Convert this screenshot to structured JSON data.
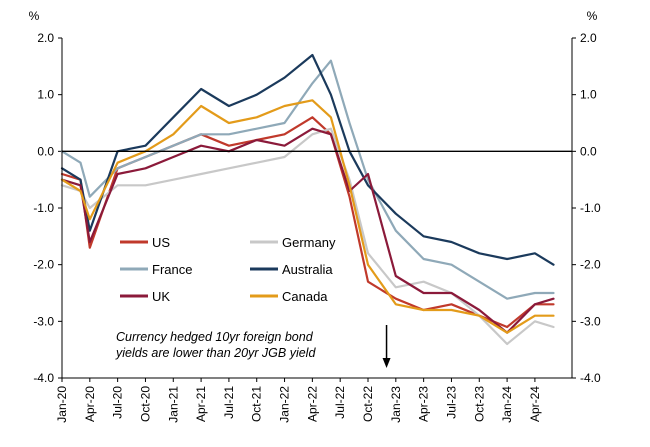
{
  "chart_data": {
    "type": "line",
    "title": "",
    "xlabel": "",
    "ylabel": "%",
    "y_unit_left": "%",
    "y_unit_right": "%",
    "ylim": [
      -4.0,
      2.0
    ],
    "yticks": [
      "2.0",
      "1.0",
      "0.0",
      "-1.0",
      "-2.0",
      "-3.0",
      "-4.0"
    ],
    "xticks": [
      "Jan-20",
      "Apr-20",
      "Jul-20",
      "Oct-20",
      "Jan-21",
      "Apr-21",
      "Jul-21",
      "Oct-21",
      "Jan-22",
      "Apr-22",
      "Jul-22",
      "Oct-22",
      "Jan-23",
      "Apr-23",
      "Jul-23",
      "Oct-23",
      "Jan-24",
      "Apr-24"
    ],
    "grid": false,
    "legend_position": "lower-left",
    "annotation": [
      "Currency hedged 10yr foreign bond",
      "yields are lower than 20yr JGB yield"
    ],
    "annotation_arrow_at": "Dec-22",
    "colors": {
      "US": "#c0392b",
      "Germany": "#c8c8c8",
      "France": "#8fa9b8",
      "Australia": "#1b3a5c",
      "UK": "#8b1a3a",
      "Canada": "#e39b1a"
    },
    "series": [
      {
        "name": "US",
        "color": "#c0392b",
        "x": [
          "Jan-20",
          "Mar-20",
          "Apr-20",
          "Jul-20",
          "Oct-20",
          "Jan-21",
          "Apr-21",
          "Jul-21",
          "Oct-21",
          "Jan-22",
          "Apr-22",
          "Jun-22",
          "Aug-22",
          "Oct-22",
          "Jan-23",
          "Apr-23",
          "Jul-23",
          "Oct-23",
          "Jan-24",
          "Apr-24",
          "Jun-24"
        ],
        "y": [
          -0.4,
          -0.5,
          -1.7,
          -0.3,
          -0.1,
          0.1,
          0.3,
          0.1,
          0.2,
          0.3,
          0.6,
          0.3,
          -0.8,
          -2.3,
          -2.6,
          -2.8,
          -2.7,
          -2.9,
          -3.1,
          -2.7,
          -2.7
        ]
      },
      {
        "name": "Germany",
        "color": "#c8c8c8",
        "x": [
          "Jan-20",
          "Mar-20",
          "Apr-20",
          "Jul-20",
          "Oct-20",
          "Jan-21",
          "Apr-21",
          "Jul-21",
          "Oct-21",
          "Jan-22",
          "Apr-22",
          "Jun-22",
          "Aug-22",
          "Oct-22",
          "Jan-23",
          "Apr-23",
          "Jul-23",
          "Oct-23",
          "Jan-24",
          "Apr-24",
          "Jun-24"
        ],
        "y": [
          -0.6,
          -0.7,
          -1.0,
          -0.6,
          -0.6,
          -0.5,
          -0.4,
          -0.3,
          -0.2,
          -0.1,
          0.3,
          0.4,
          -0.5,
          -1.8,
          -2.4,
          -2.3,
          -2.5,
          -2.9,
          -3.4,
          -3.0,
          -3.1
        ]
      },
      {
        "name": "France",
        "color": "#8fa9b8",
        "x": [
          "Jan-20",
          "Mar-20",
          "Apr-20",
          "Jul-20",
          "Oct-20",
          "Jan-21",
          "Apr-21",
          "Jul-21",
          "Oct-21",
          "Jan-22",
          "Apr-22",
          "Jun-22",
          "Aug-22",
          "Oct-22",
          "Jan-23",
          "Apr-23",
          "Jul-23",
          "Oct-23",
          "Jan-24",
          "Apr-24",
          "Jun-24"
        ],
        "y": [
          0.0,
          -0.2,
          -0.8,
          -0.3,
          -0.1,
          0.1,
          0.3,
          0.3,
          0.4,
          0.5,
          1.2,
          1.6,
          0.5,
          -0.5,
          -1.4,
          -1.9,
          -2.0,
          -2.3,
          -2.6,
          -2.5,
          -2.5
        ]
      },
      {
        "name": "Australia",
        "color": "#1b3a5c",
        "x": [
          "Jan-20",
          "Mar-20",
          "Apr-20",
          "Jul-20",
          "Oct-20",
          "Jan-21",
          "Apr-21",
          "Jul-21",
          "Oct-21",
          "Jan-22",
          "Apr-22",
          "Jun-22",
          "Aug-22",
          "Oct-22",
          "Jan-23",
          "Apr-23",
          "Jul-23",
          "Oct-23",
          "Jan-24",
          "Apr-24",
          "Jun-24"
        ],
        "y": [
          -0.3,
          -0.5,
          -1.4,
          0.0,
          0.1,
          0.6,
          1.1,
          0.8,
          1.0,
          1.3,
          1.7,
          1.0,
          0.0,
          -0.6,
          -1.1,
          -1.5,
          -1.6,
          -1.8,
          -1.9,
          -1.8,
          -2.0
        ]
      },
      {
        "name": "UK",
        "color": "#8b1a3a",
        "x": [
          "Jan-20",
          "Mar-20",
          "Apr-20",
          "Jul-20",
          "Oct-20",
          "Jan-21",
          "Apr-21",
          "Jul-21",
          "Oct-21",
          "Jan-22",
          "Apr-22",
          "Jun-22",
          "Aug-22",
          "Oct-22",
          "Jan-23",
          "Apr-23",
          "Jul-23",
          "Oct-23",
          "Jan-24",
          "Apr-24",
          "Jun-24"
        ],
        "y": [
          -0.5,
          -0.6,
          -1.6,
          -0.4,
          -0.3,
          -0.1,
          0.1,
          0.0,
          0.2,
          0.1,
          0.4,
          0.3,
          -0.7,
          -0.4,
          -2.2,
          -2.5,
          -2.5,
          -2.8,
          -3.2,
          -2.7,
          -2.6
        ]
      },
      {
        "name": "Canada",
        "color": "#e39b1a",
        "x": [
          "Jan-20",
          "Mar-20",
          "Apr-20",
          "Jul-20",
          "Oct-20",
          "Jan-21",
          "Apr-21",
          "Jul-21",
          "Oct-21",
          "Jan-22",
          "Apr-22",
          "Jun-22",
          "Aug-22",
          "Oct-22",
          "Jan-23",
          "Apr-23",
          "Jul-23",
          "Oct-23",
          "Jan-24",
          "Apr-24",
          "Jun-24"
        ],
        "y": [
          -0.5,
          -0.7,
          -1.2,
          -0.2,
          0.0,
          0.3,
          0.8,
          0.5,
          0.6,
          0.8,
          0.9,
          0.6,
          -0.6,
          -2.0,
          -2.7,
          -2.8,
          -2.8,
          -2.9,
          -3.2,
          -2.9,
          -2.9
        ]
      }
    ]
  }
}
